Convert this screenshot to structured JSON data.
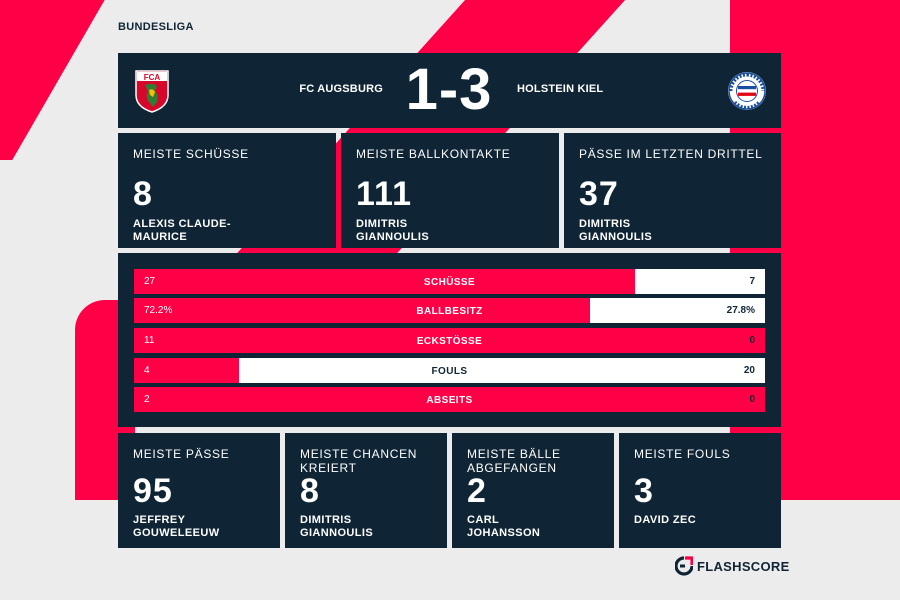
{
  "league": "BUNDESLIGA",
  "match": {
    "home_team": "FC AUGSBURG",
    "away_team": "HOLSTEIN KIEL",
    "score": "1-3",
    "home_crest_text": "FCA",
    "away_crest_text": "KIELER SV HOLSTEIN VON 1900"
  },
  "top_cards": [
    {
      "label": "MEISTE SCHÜSSE",
      "value": "8",
      "player": "ALEXIS CLAUDE-MAURICE"
    },
    {
      "label": "MEISTE BALLKONTAKTE",
      "value": "111",
      "player": "DIMITRIS GIANNOULIS"
    },
    {
      "label": "PÄSSE IM LETZTEN DRITTEL",
      "value": "37",
      "player": "DIMITRIS GIANNOULIS"
    }
  ],
  "stats": [
    {
      "name": "SCHÜSSE",
      "home": "27",
      "away": "7",
      "home_share": 0.794
    },
    {
      "name": "BALLBESITZ",
      "home": "72.2%",
      "away": "27.8%",
      "home_share": 0.722
    },
    {
      "name": "ECKSTÖSSE",
      "home": "11",
      "away": "0",
      "home_share": 1.0
    },
    {
      "name": "FOULS",
      "home": "4",
      "away": "20",
      "home_share": 0.167
    },
    {
      "name": "ABSEITS",
      "home": "2",
      "away": "0",
      "home_share": 1.0
    }
  ],
  "bottom_cards": [
    {
      "label": "MEISTE PÄSSE",
      "value": "95",
      "player": "JEFFREY GOUWELEEUW"
    },
    {
      "label": "MEISTE CHANCEN KREIERT",
      "value": "8",
      "player": "DIMITRIS GIANNOULIS"
    },
    {
      "label": "MEISTE BÄLLE ABGEFANGEN",
      "value": "2",
      "player": "CARL JOHANSSON"
    },
    {
      "label": "MEISTE FOULS",
      "value": "3",
      "player": "DAVID ZEC"
    }
  ],
  "brand": "FLASHSCORE",
  "colors": {
    "navy": "#0f2535",
    "red": "#ff0046",
    "background": "#ececec"
  }
}
